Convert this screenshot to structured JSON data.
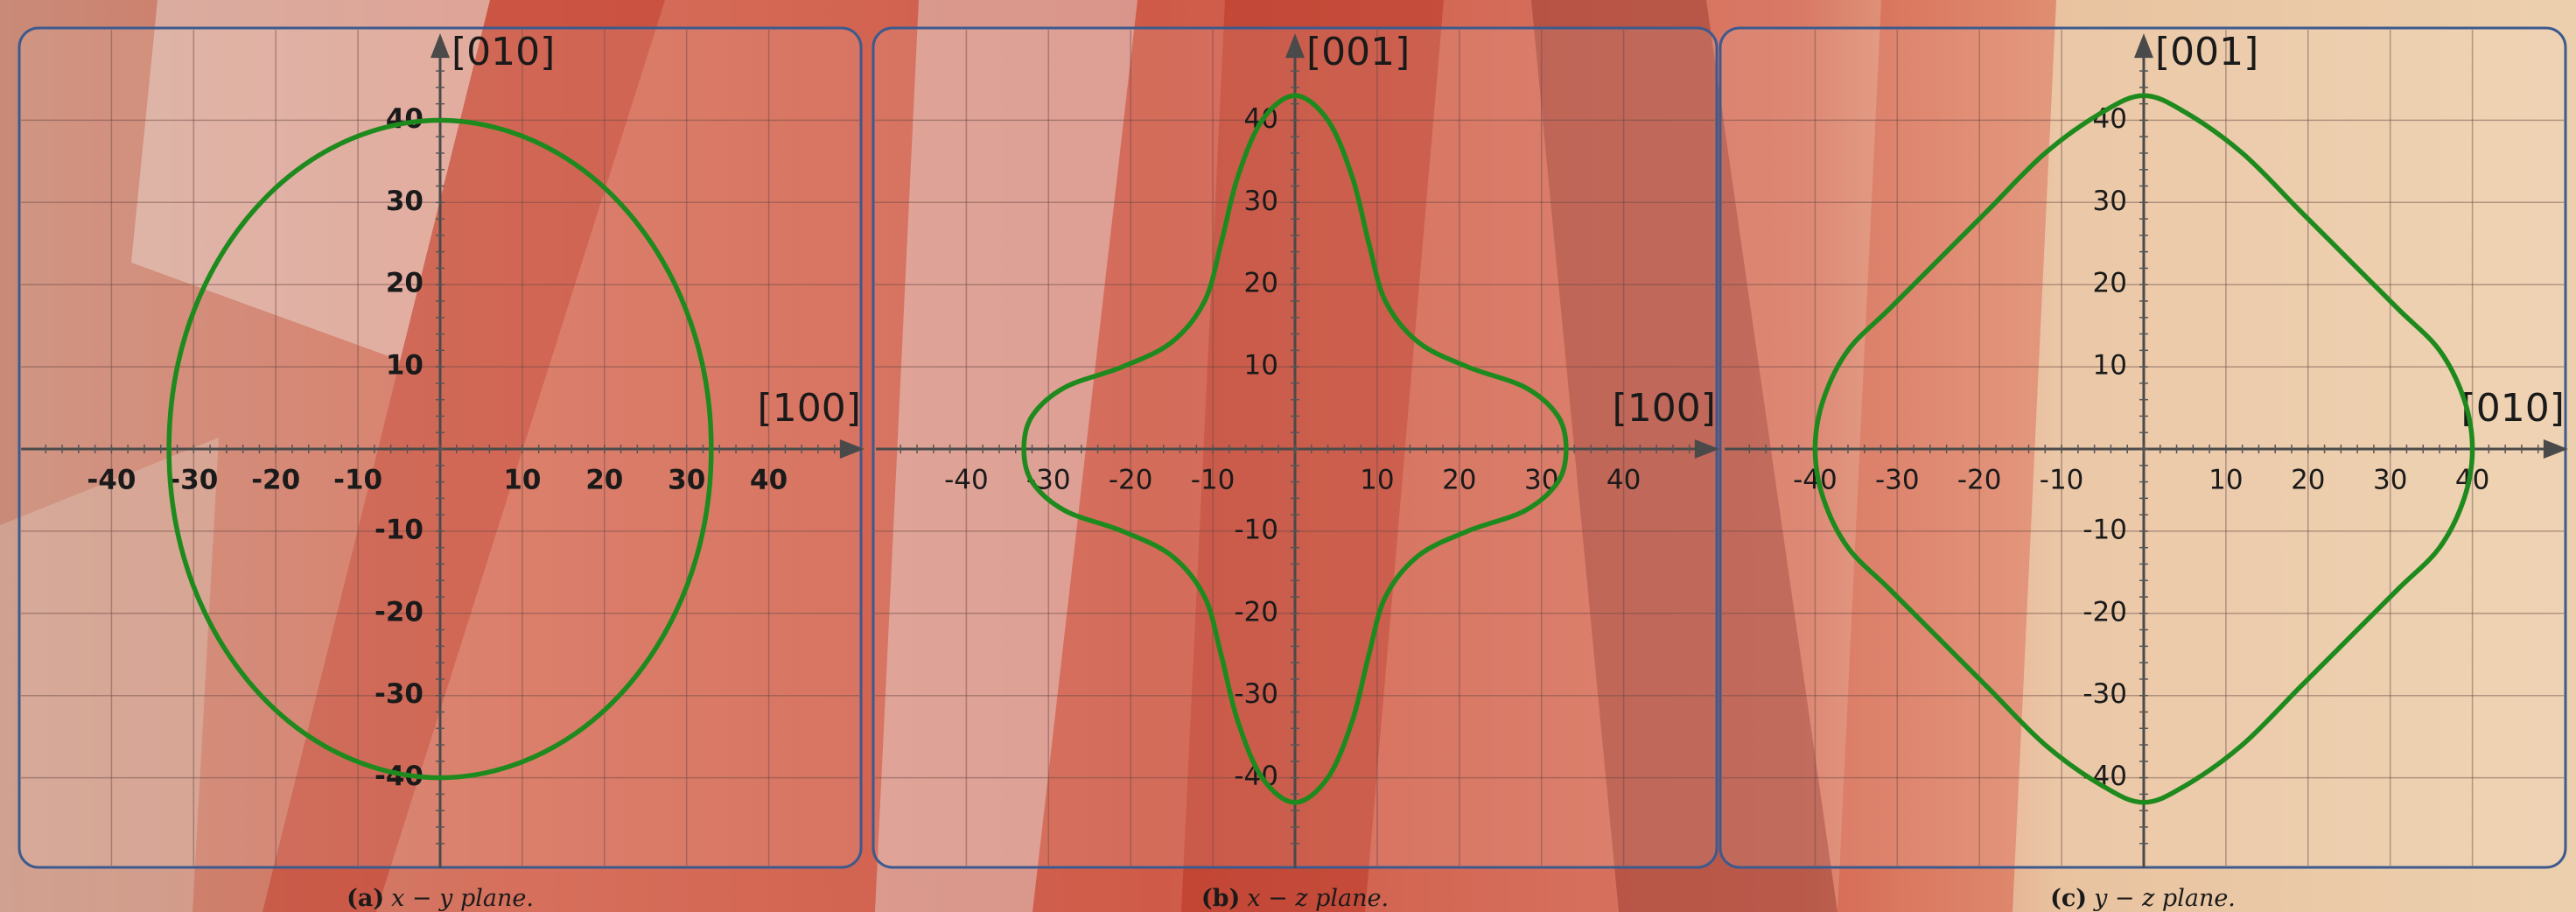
{
  "chart_data": [
    {
      "type": "line",
      "xlabel": "[100]",
      "ylabel": "[010]",
      "caption_label": "(a)",
      "caption": "x − y plane.",
      "color": "#1e8a1e",
      "xlim": [
        -51,
        51
      ],
      "ylim": [
        -51,
        51
      ],
      "xticks": [
        -40,
        -30,
        -20,
        -10,
        10,
        20,
        30,
        40
      ],
      "yticks": [
        -40,
        -30,
        -20,
        -10,
        10,
        20,
        30,
        40
      ],
      "x": [
        33,
        31.9,
        28.6,
        23.3,
        16.5,
        8.5,
        0,
        -8.5,
        -16.5,
        -23.3,
        -28.6,
        -31.9,
        -33,
        -31.9,
        -28.6,
        -23.3,
        -16.5,
        -8.5,
        0,
        8.5,
        16.5,
        23.3,
        28.6,
        31.9
      ],
      "values": [
        0,
        10.4,
        20,
        28.3,
        34.6,
        38.6,
        40,
        38.6,
        34.6,
        28.3,
        20,
        10.4,
        0,
        -10.4,
        -20,
        -28.3,
        -34.6,
        -38.6,
        -40,
        -38.6,
        -34.6,
        -28.3,
        -20,
        -10.4
      ]
    },
    {
      "type": "line",
      "xlabel": "[100]",
      "ylabel": "[001]",
      "caption_label": "(b)",
      "caption": "x − z plane.",
      "color": "#1e8a1e",
      "xlim": [
        -51,
        51
      ],
      "ylim": [
        -51,
        51
      ],
      "xticks": [
        -40,
        -30,
        -20,
        -10,
        10,
        20,
        30,
        40
      ],
      "yticks": [
        -40,
        -30,
        -20,
        -10,
        10,
        20,
        30,
        40
      ],
      "x": [
        33,
        32,
        28,
        21,
        15,
        11,
        9,
        7,
        4,
        0,
        -4,
        -7,
        -9,
        -11,
        -15,
        -21,
        -28,
        -32,
        -33,
        -32,
        -28,
        -21,
        -15,
        -11,
        -9,
        -7,
        -4,
        0,
        4,
        7,
        9,
        11,
        15,
        21,
        28,
        32
      ],
      "values": [
        0,
        4,
        7.5,
        10,
        13,
        18,
        25,
        33,
        40,
        43,
        40,
        33,
        25,
        18,
        13,
        10,
        7.5,
        4,
        0,
        -4,
        -7.5,
        -10,
        -13,
        -18,
        -25,
        -33,
        -40,
        -43,
        -40,
        -33,
        -25,
        -18,
        -13,
        -10,
        -7.5,
        -4
      ]
    },
    {
      "type": "line",
      "xlabel": "[010]",
      "ylabel": "[001]",
      "caption_label": "(c)",
      "caption": "y − z plane.",
      "color": "#1e8a1e",
      "xlim": [
        -51,
        51
      ],
      "ylim": [
        -51,
        51
      ],
      "xticks": [
        -40,
        -30,
        -20,
        -10,
        10,
        20,
        30,
        40
      ],
      "yticks": [
        -40,
        -30,
        -20,
        -10,
        10,
        20,
        30,
        40
      ],
      "x": [
        40,
        39,
        36,
        31,
        25,
        19,
        12,
        5,
        0,
        -5,
        -12,
        -19,
        -25,
        -31,
        -36,
        -39,
        -40,
        -39,
        -36,
        -31,
        -25,
        -19,
        -12,
        -5,
        0,
        5,
        12,
        19,
        25,
        31,
        36,
        39
      ],
      "values": [
        0,
        6,
        12,
        17,
        23,
        29,
        36,
        41,
        43,
        41,
        36,
        29,
        23,
        17,
        12,
        6,
        0,
        -6,
        -12,
        -17,
        -23,
        -29,
        -36,
        -41,
        -43,
        -41,
        -36,
        -29,
        -23,
        -17,
        -12,
        -6
      ]
    }
  ]
}
